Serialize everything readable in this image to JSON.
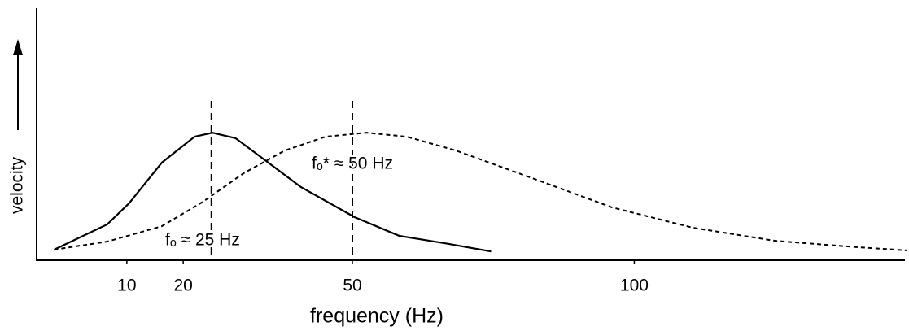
{
  "chart_data": {
    "type": "line",
    "xlabel": "frequency (Hz)",
    "ylabel": "velocity",
    "xlim": [
      -6,
      148
    ],
    "ylim": [
      0,
      100
    ],
    "xticks": [
      10,
      20,
      50,
      100
    ],
    "series": [
      {
        "color": "#000000",
        "style": "solid",
        "x": [
          -2.9,
          6.5,
          10.4,
          16.2,
          22,
          25.2,
          29.3,
          35.1,
          40.9,
          50.4,
          58.3,
          67,
          74.6
        ],
        "values": [
          4.2,
          14.2,
          22.6,
          38.7,
          49,
          50.6,
          48.4,
          38.7,
          29,
          17.1,
          9.7,
          6.5,
          3.5
        ]
      },
      {
        "color": "#000000",
        "style": "dotted",
        "x": [
          -2.9,
          6.5,
          16.2,
          23.5,
          30.7,
          38,
          45.2,
          52.5,
          59.7,
          68.4,
          81.5,
          96,
          110.4,
          125,
          139.4,
          148.4
        ],
        "values": [
          4.2,
          7.4,
          13.5,
          23.2,
          34.5,
          43.5,
          49,
          50.6,
          49,
          43.5,
          32.9,
          21,
          12.9,
          7.7,
          5.2,
          3.9
        ]
      }
    ],
    "markers": [
      {
        "x": 25,
        "label": "fₒ ≈ 25 Hz"
      },
      {
        "x": 50,
        "label": "fₒ* ≈ 50 Hz"
      }
    ]
  }
}
